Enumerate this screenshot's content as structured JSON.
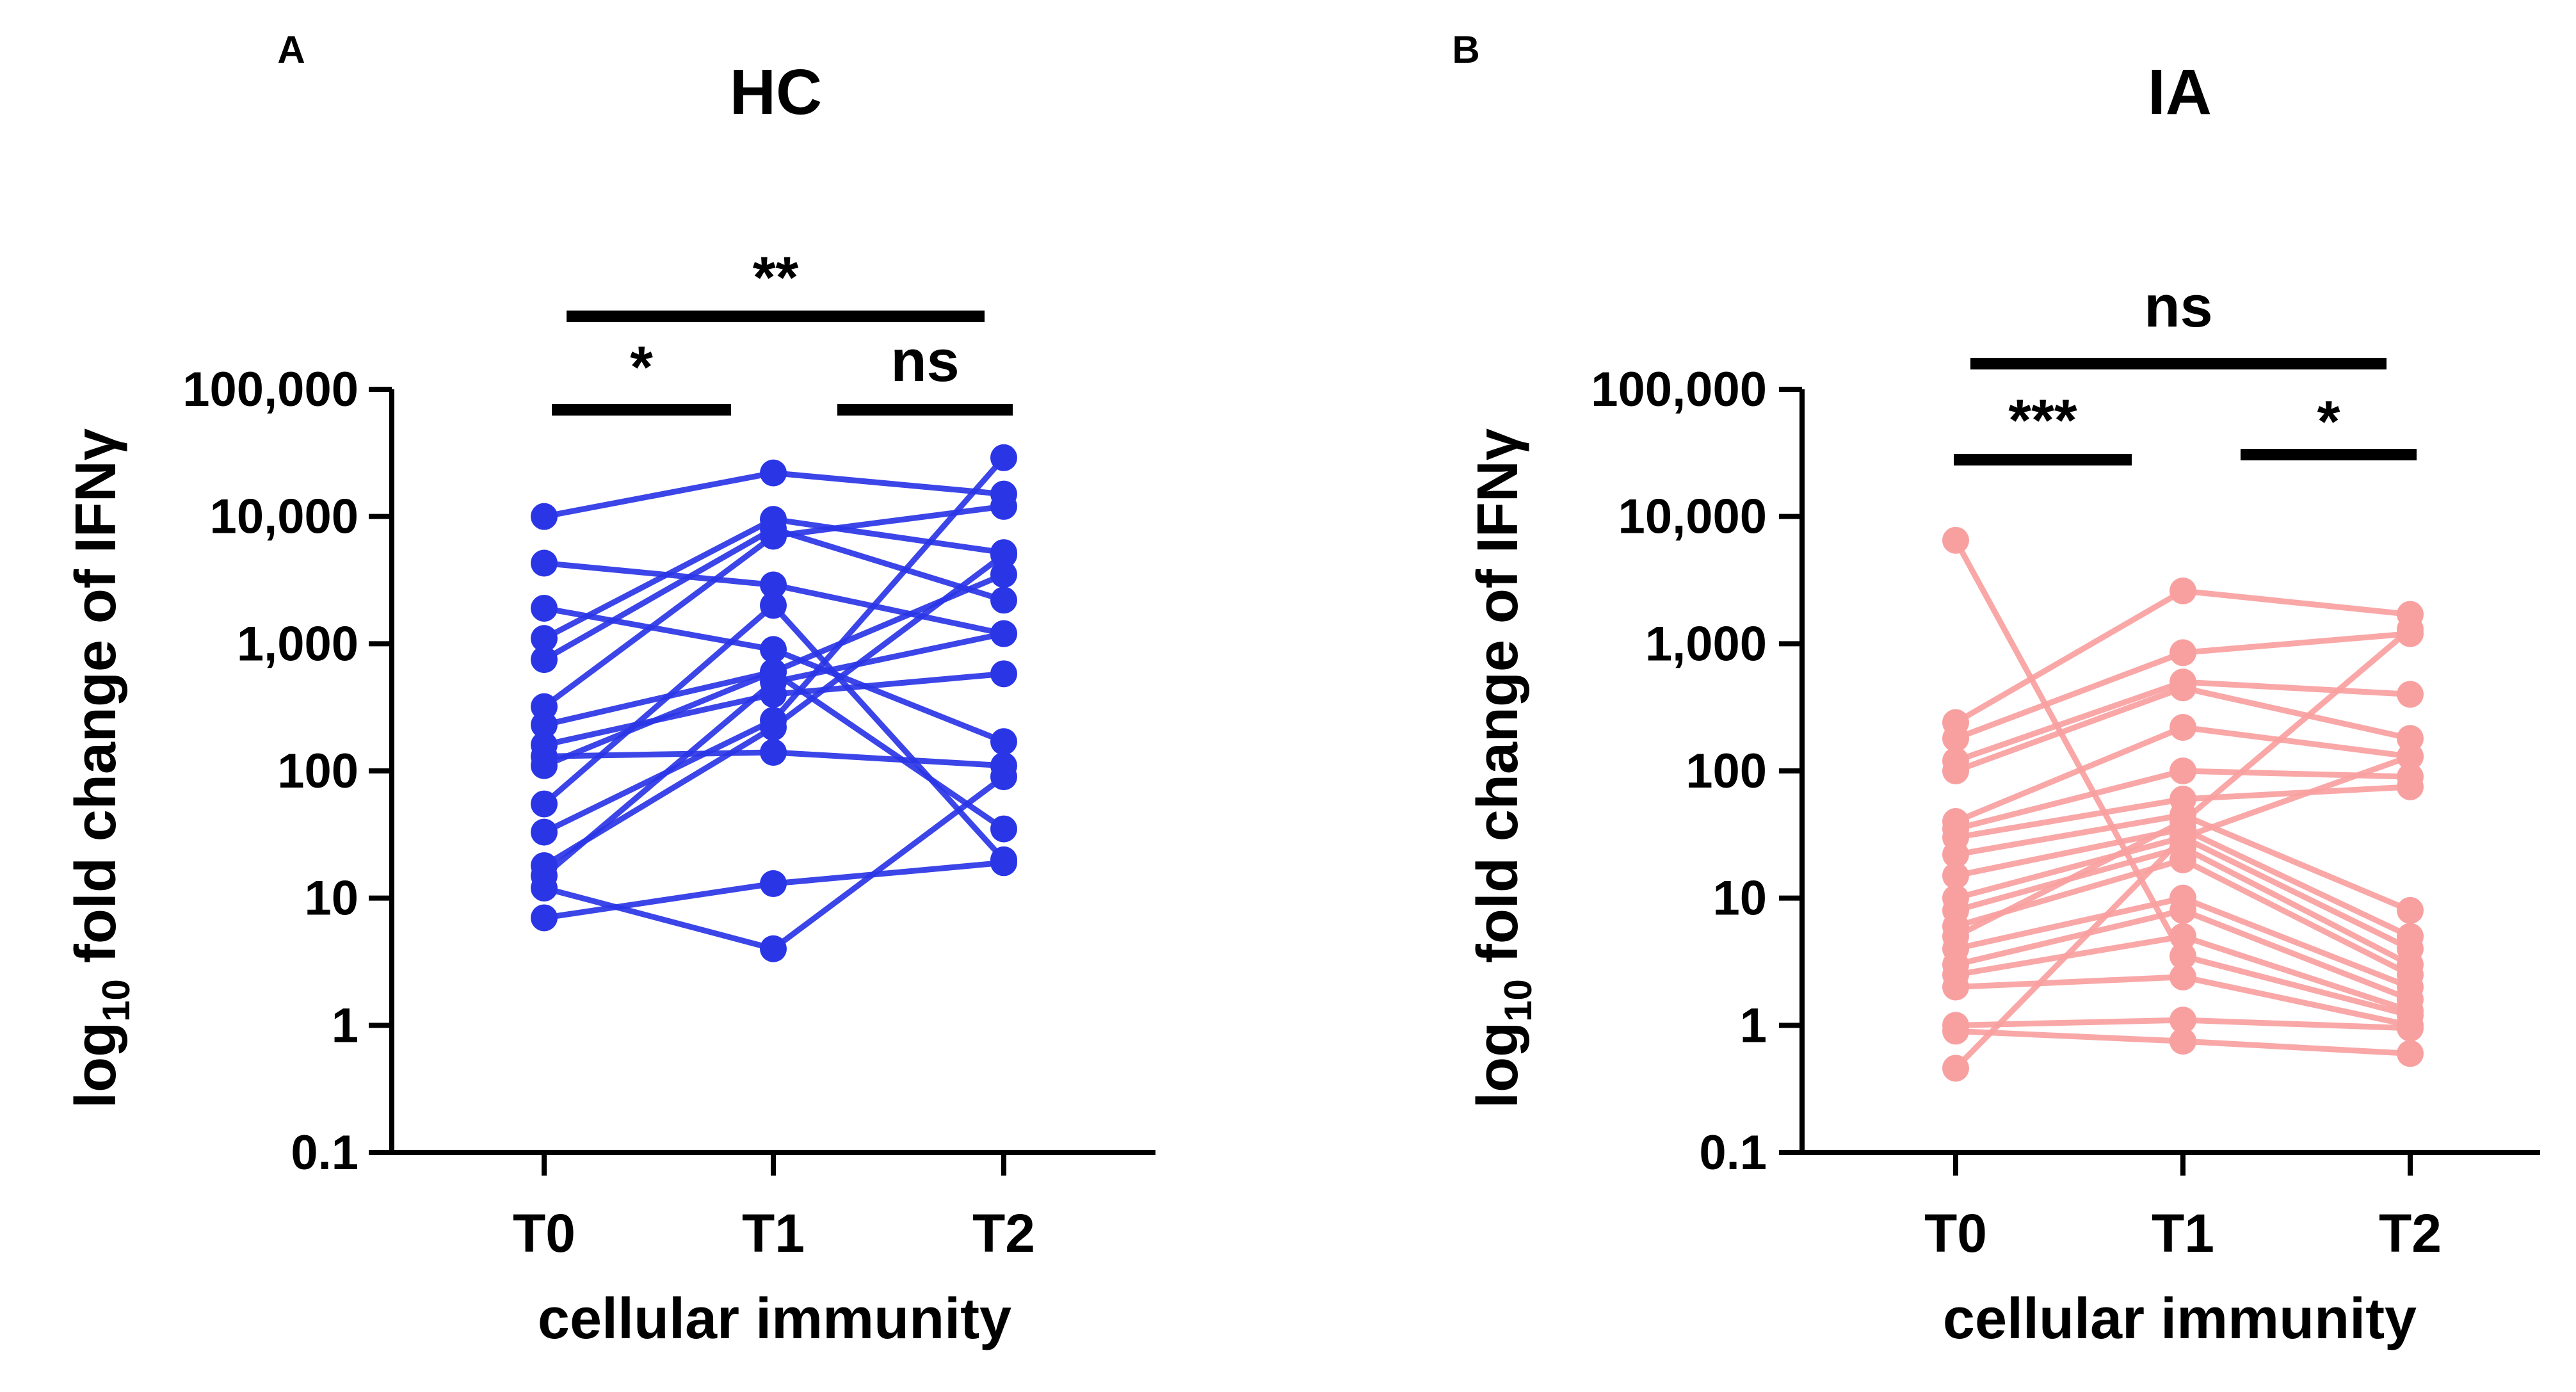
{
  "figure": {
    "panels": [
      {
        "letter": "A",
        "title": "HC",
        "color": "#2a35e6"
      },
      {
        "letter": "B",
        "title": "IA",
        "color": "#f8a0a0"
      }
    ]
  },
  "chart_data": [
    {
      "type": "scatter",
      "panel_letter": "A",
      "title": "HC",
      "ylabel": "log10 fold change of IFNγ",
      "ylabel_base": "log",
      "ylabel_sub": "10",
      "ylabel_rest": " fold change of IFNγ",
      "xlabel": "cellular immunity",
      "categories": [
        "T0",
        "T1",
        "T2"
      ],
      "yscale": "log",
      "ylim": [
        0.1,
        100000
      ],
      "yticks": [
        0.1,
        1,
        10,
        100,
        1000,
        10000,
        100000
      ],
      "yticklabels": [
        "0.1",
        "1",
        "10",
        "100",
        "1,000",
        "10,000",
        "100,000"
      ],
      "series_color": "#2a35e6",
      "series": [
        {
          "name": "s1",
          "values": [
            10000,
            22000,
            15000
          ]
        },
        {
          "name": "s2",
          "values": [
            4300,
            2900,
            1200
          ]
        },
        {
          "name": "s3",
          "values": [
            1900,
            900,
            170
          ]
        },
        {
          "name": "s4",
          "values": [
            1100,
            9500,
            5200
          ]
        },
        {
          "name": "s5",
          "values": [
            750,
            8000,
            2200
          ]
        },
        {
          "name": "s6",
          "values": [
            320,
            7000,
            12000
          ]
        },
        {
          "name": "s7",
          "values": [
            230,
            600,
            3500
          ]
        },
        {
          "name": "s8",
          "values": [
            160,
            400,
            580
          ]
        },
        {
          "name": "s9",
          "values": [
            130,
            140,
            110
          ]
        },
        {
          "name": "s10",
          "values": [
            110,
            600,
            35
          ]
        },
        {
          "name": "s11",
          "values": [
            55,
            2000,
            20
          ]
        },
        {
          "name": "s12",
          "values": [
            33,
            250,
            29000
          ]
        },
        {
          "name": "s13",
          "values": [
            18,
            220,
            5000
          ]
        },
        {
          "name": "s14",
          "values": [
            15,
            500,
            1200
          ]
        },
        {
          "name": "s15",
          "values": [
            12,
            4,
            90
          ]
        },
        {
          "name": "s16",
          "values": [
            7,
            13,
            19
          ]
        }
      ],
      "significance": [
        {
          "label": "*",
          "from": "T0",
          "to": "T1"
        },
        {
          "label": "ns",
          "from": "T1",
          "to": "T2"
        },
        {
          "label": "**",
          "from": "T0",
          "to": "T2"
        }
      ]
    },
    {
      "type": "scatter",
      "panel_letter": "B",
      "title": "IA",
      "ylabel": "log10 fold change of IFNγ",
      "ylabel_base": "log",
      "ylabel_sub": "10",
      "ylabel_rest": " fold change of IFNγ",
      "xlabel": "cellular immunity",
      "categories": [
        "T0",
        "T1",
        "T2"
      ],
      "yscale": "log",
      "ylim": [
        0.1,
        100000
      ],
      "yticks": [
        0.1,
        1,
        10,
        100,
        1000,
        10000,
        100000
      ],
      "yticklabels": [
        "0.1",
        "1",
        "10",
        "100",
        "1,000",
        "10,000",
        "100,000"
      ],
      "series_color": "#f8a0a0",
      "series": [
        {
          "name": "s1",
          "values": [
            6500,
            3.5,
            1.2
          ]
        },
        {
          "name": "s2",
          "values": [
            240,
            2600,
            1700
          ]
        },
        {
          "name": "s3",
          "values": [
            180,
            850,
            1200
          ]
        },
        {
          "name": "s4",
          "values": [
            120,
            500,
            400
          ]
        },
        {
          "name": "s5",
          "values": [
            100,
            450,
            180
          ]
        },
        {
          "name": "s6",
          "values": [
            40,
            220,
            130
          ]
        },
        {
          "name": "s7",
          "values": [
            35,
            100,
            90
          ]
        },
        {
          "name": "s8",
          "values": [
            30,
            60,
            75
          ]
        },
        {
          "name": "s9",
          "values": [
            22,
            45,
            8
          ]
        },
        {
          "name": "s10",
          "values": [
            15,
            35,
            5
          ]
        },
        {
          "name": "s11",
          "values": [
            10,
            30,
            4
          ]
        },
        {
          "name": "s12",
          "values": [
            8,
            25,
            3
          ]
        },
        {
          "name": "s13",
          "values": [
            6,
            20,
            2.5
          ]
        },
        {
          "name": "s14",
          "values": [
            5,
            40,
            1300
          ]
        },
        {
          "name": "s15",
          "values": [
            4,
            10,
            2
          ]
        },
        {
          "name": "s16",
          "values": [
            3,
            8,
            1.6
          ]
        },
        {
          "name": "s17",
          "values": [
            2.5,
            5,
            1.3
          ]
        },
        {
          "name": "s18",
          "values": [
            2,
            2.4,
            1
          ]
        },
        {
          "name": "s19",
          "values": [
            1,
            1.1,
            0.95
          ]
        },
        {
          "name": "s20",
          "values": [
            0.9,
            0.75,
            0.6
          ]
        },
        {
          "name": "s21",
          "values": [
            0.46,
            30,
            130
          ]
        }
      ],
      "significance": [
        {
          "label": "***",
          "from": "T0",
          "to": "T1"
        },
        {
          "label": "*",
          "from": "T1",
          "to": "T2"
        },
        {
          "label": "ns",
          "from": "T0",
          "to": "T2"
        }
      ]
    }
  ]
}
